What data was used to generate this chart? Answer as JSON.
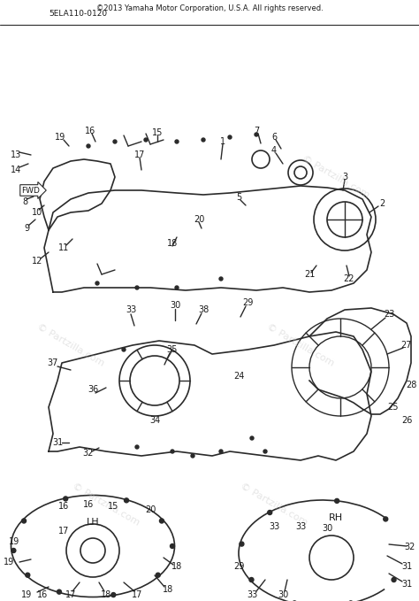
{
  "title": "©2013 Yamaha Motor Corporation, U.S.A. All rights reserved.",
  "part_code": "5ELA110-0120",
  "watermark": "© Partzilla.com",
  "bg_color": "#ffffff",
  "line_color": "#2a2a2a",
  "text_color": "#1a1a1a",
  "watermark_color": "#cccccc",
  "fig_width": 4.74,
  "fig_height": 6.79,
  "dpi": 100,
  "labels_lh": [
    "LH",
    "16",
    "16",
    "15",
    "17",
    "19",
    "18",
    "17",
    "18",
    "18",
    "20"
  ],
  "labels_rh": [
    "RH",
    "33",
    "33",
    "30",
    "29",
    "31",
    "31",
    "32",
    "33"
  ],
  "labels_main_top": [
    "33",
    "30",
    "38",
    "29",
    "23",
    "27",
    "37",
    "35",
    "36",
    "31",
    "32",
    "34"
  ],
  "labels_main_bot": [
    "1",
    "17",
    "11",
    "12",
    "9",
    "10",
    "8",
    "14",
    "13",
    "19",
    "16",
    "15",
    "18",
    "20",
    "5",
    "21",
    "22",
    "4",
    "3",
    "6",
    "7",
    "2"
  ]
}
